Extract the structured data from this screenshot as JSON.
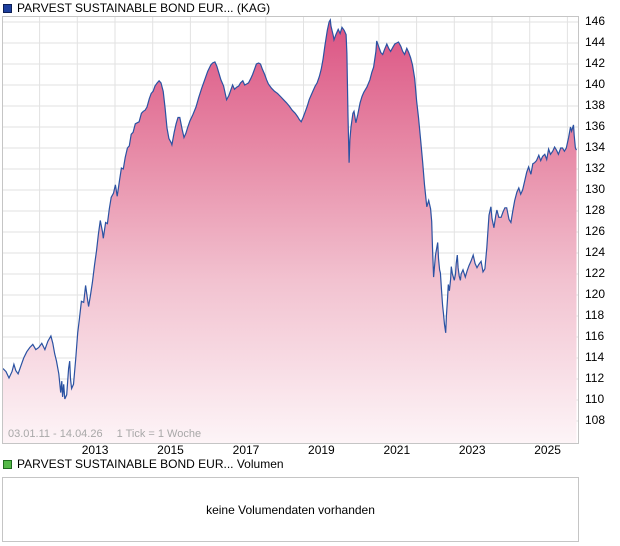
{
  "header": {
    "series_label": "PARVEST SUSTAINABLE BOND EUR... (KAG)",
    "series_swatch_color": "#1d3f9e"
  },
  "chart": {
    "range_text": "03.01.11 - 14.04.26",
    "tick_info_text": "1 Tick = 1 Woche"
  },
  "volume": {
    "series_label": "PARVEST SUSTAINABLE BOND EUR... Volumen",
    "series_swatch_color": "#54b948",
    "empty_text": "keine Volumendaten vorhanden"
  },
  "chart_data": {
    "type": "area",
    "title": "PARVEST SUSTAINABLE BOND EUR... (KAG)",
    "xlabel": "",
    "ylabel": "",
    "x_range": [
      2011.03,
      2026.28
    ],
    "x_ticks": [
      2013,
      2015,
      2017,
      2019,
      2021,
      2023,
      2025
    ],
    "y_ticks": [
      146,
      144,
      142,
      140,
      138,
      136,
      134,
      132,
      130,
      128,
      126,
      124,
      122,
      120,
      118,
      116,
      114,
      112,
      110,
      108
    ],
    "grid": true,
    "legend_position": "none",
    "line_color": "#2b52a2",
    "grid_color": "#e2e2e2",
    "fill_gradient": [
      {
        "offset": 0.0,
        "color": "#db5282"
      },
      {
        "offset": 0.32,
        "color": "#e78ba7"
      },
      {
        "offset": 0.62,
        "color": "#f2c2d0"
      },
      {
        "offset": 1.0,
        "color": "#fdf4f7"
      }
    ],
    "points": [
      [
        2011.03,
        113.0
      ],
      [
        2011.11,
        112.7
      ],
      [
        2011.19,
        112.1
      ],
      [
        2011.27,
        112.7
      ],
      [
        2011.32,
        113.4
      ],
      [
        2011.37,
        112.8
      ],
      [
        2011.43,
        112.5
      ],
      [
        2011.5,
        113.2
      ],
      [
        2011.58,
        114.0
      ],
      [
        2011.66,
        114.6
      ],
      [
        2011.74,
        115.0
      ],
      [
        2011.82,
        115.3
      ],
      [
        2011.9,
        114.8
      ],
      [
        2011.98,
        115.0
      ],
      [
        2012.06,
        115.4
      ],
      [
        2012.14,
        114.8
      ],
      [
        2012.22,
        115.6
      ],
      [
        2012.3,
        116.1
      ],
      [
        2012.35,
        115.4
      ],
      [
        2012.4,
        114.4
      ],
      [
        2012.45,
        113.7
      ],
      [
        2012.51,
        112.5
      ],
      [
        2012.56,
        110.7
      ],
      [
        2012.59,
        111.8
      ],
      [
        2012.61,
        110.3
      ],
      [
        2012.64,
        111.5
      ],
      [
        2012.67,
        110.1
      ],
      [
        2012.72,
        110.5
      ],
      [
        2012.77,
        113.0
      ],
      [
        2012.8,
        113.7
      ],
      [
        2012.82,
        112.0
      ],
      [
        2012.85,
        111.1
      ],
      [
        2012.9,
        111.5
      ],
      [
        2012.96,
        114.0
      ],
      [
        2013.01,
        116.4
      ],
      [
        2013.06,
        117.8
      ],
      [
        2013.11,
        119.4
      ],
      [
        2013.17,
        119.3
      ],
      [
        2013.22,
        120.9
      ],
      [
        2013.27,
        119.6
      ],
      [
        2013.3,
        118.9
      ],
      [
        2013.35,
        120.0
      ],
      [
        2013.4,
        121.2
      ],
      [
        2013.46,
        122.9
      ],
      [
        2013.51,
        124.2
      ],
      [
        2013.56,
        125.8
      ],
      [
        2013.61,
        127.1
      ],
      [
        2013.67,
        126.0
      ],
      [
        2013.69,
        125.4
      ],
      [
        2013.75,
        126.9
      ],
      [
        2013.8,
        126.8
      ],
      [
        2013.85,
        128.2
      ],
      [
        2013.9,
        129.3
      ],
      [
        2013.96,
        129.7
      ],
      [
        2014.01,
        130.5
      ],
      [
        2014.06,
        129.4
      ],
      [
        2014.12,
        130.9
      ],
      [
        2014.17,
        132.1
      ],
      [
        2014.22,
        132.0
      ],
      [
        2014.27,
        133.1
      ],
      [
        2014.33,
        134.0
      ],
      [
        2014.38,
        134.2
      ],
      [
        2014.43,
        135.3
      ],
      [
        2014.48,
        135.5
      ],
      [
        2014.54,
        136.3
      ],
      [
        2014.59,
        136.4
      ],
      [
        2014.64,
        136.5
      ],
      [
        2014.7,
        137.3
      ],
      [
        2014.75,
        137.5
      ],
      [
        2014.8,
        137.6
      ],
      [
        2014.85,
        137.9
      ],
      [
        2014.91,
        138.7
      ],
      [
        2014.96,
        139.2
      ],
      [
        2015.01,
        139.4
      ],
      [
        2015.06,
        139.9
      ],
      [
        2015.12,
        140.2
      ],
      [
        2015.17,
        140.4
      ],
      [
        2015.22,
        140.2
      ],
      [
        2015.28,
        139.4
      ],
      [
        2015.33,
        137.8
      ],
      [
        2015.38,
        135.9
      ],
      [
        2015.43,
        134.9
      ],
      [
        2015.49,
        134.5
      ],
      [
        2015.51,
        134.3
      ],
      [
        2015.57,
        135.5
      ],
      [
        2015.62,
        136.3
      ],
      [
        2015.67,
        136.9
      ],
      [
        2015.72,
        136.9
      ],
      [
        2015.78,
        135.8
      ],
      [
        2015.83,
        135.0
      ],
      [
        2015.88,
        135.4
      ],
      [
        2015.93,
        136.0
      ],
      [
        2015.99,
        136.6
      ],
      [
        2016.07,
        137.2
      ],
      [
        2016.15,
        137.9
      ],
      [
        2016.22,
        138.8
      ],
      [
        2016.3,
        139.7
      ],
      [
        2016.38,
        140.5
      ],
      [
        2016.46,
        141.3
      ],
      [
        2016.54,
        141.9
      ],
      [
        2016.59,
        142.1
      ],
      [
        2016.65,
        142.2
      ],
      [
        2016.7,
        141.8
      ],
      [
        2016.75,
        141.2
      ],
      [
        2016.81,
        140.5
      ],
      [
        2016.88,
        139.9
      ],
      [
        2016.96,
        138.6
      ],
      [
        2017.02,
        139.0
      ],
      [
        2017.07,
        139.5
      ],
      [
        2017.12,
        140.0
      ],
      [
        2017.17,
        139.6
      ],
      [
        2017.23,
        139.8
      ],
      [
        2017.28,
        139.9
      ],
      [
        2017.33,
        140.2
      ],
      [
        2017.39,
        140.4
      ],
      [
        2017.44,
        140.0
      ],
      [
        2017.49,
        140.1
      ],
      [
        2017.54,
        140.2
      ],
      [
        2017.6,
        140.6
      ],
      [
        2017.65,
        141.0
      ],
      [
        2017.7,
        141.5
      ],
      [
        2017.75,
        142.0
      ],
      [
        2017.81,
        142.1
      ],
      [
        2017.86,
        142.0
      ],
      [
        2017.91,
        141.5
      ],
      [
        2017.97,
        141.0
      ],
      [
        2018.02,
        140.5
      ],
      [
        2018.07,
        140.1
      ],
      [
        2018.15,
        139.7
      ],
      [
        2018.23,
        139.4
      ],
      [
        2018.31,
        139.2
      ],
      [
        2018.39,
        138.9
      ],
      [
        2018.47,
        138.6
      ],
      [
        2018.55,
        138.3
      ],
      [
        2018.62,
        138.0
      ],
      [
        2018.7,
        137.6
      ],
      [
        2018.78,
        137.3
      ],
      [
        2018.84,
        137.0
      ],
      [
        2018.89,
        136.7
      ],
      [
        2018.94,
        136.5
      ],
      [
        2018.99,
        136.9
      ],
      [
        2019.05,
        137.5
      ],
      [
        2019.1,
        138.0
      ],
      [
        2019.15,
        138.6
      ],
      [
        2019.2,
        139.0
      ],
      [
        2019.26,
        139.5
      ],
      [
        2019.31,
        139.9
      ],
      [
        2019.36,
        140.2
      ],
      [
        2019.42,
        140.8
      ],
      [
        2019.47,
        141.5
      ],
      [
        2019.52,
        142.5
      ],
      [
        2019.57,
        143.8
      ],
      [
        2019.63,
        145.2
      ],
      [
        2019.68,
        146.0
      ],
      [
        2019.71,
        146.2
      ],
      [
        2019.73,
        145.6
      ],
      [
        2019.79,
        144.7
      ],
      [
        2019.81,
        144.3
      ],
      [
        2019.86,
        144.8
      ],
      [
        2019.92,
        145.3
      ],
      [
        2019.97,
        144.9
      ],
      [
        2020.02,
        145.5
      ],
      [
        2020.08,
        145.2
      ],
      [
        2020.13,
        144.8
      ],
      [
        2020.15,
        143.0
      ],
      [
        2020.18,
        137.0
      ],
      [
        2020.21,
        132.6
      ],
      [
        2020.23,
        134.8
      ],
      [
        2020.26,
        136.0
      ],
      [
        2020.31,
        137.3
      ],
      [
        2020.34,
        137.5
      ],
      [
        2020.39,
        136.4
      ],
      [
        2020.44,
        137.2
      ],
      [
        2020.5,
        138.3
      ],
      [
        2020.55,
        138.9
      ],
      [
        2020.6,
        139.3
      ],
      [
        2020.68,
        139.8
      ],
      [
        2020.76,
        140.5
      ],
      [
        2020.81,
        141.2
      ],
      [
        2020.86,
        141.7
      ],
      [
        2020.92,
        143.2
      ],
      [
        2020.94,
        144.2
      ],
      [
        2021.0,
        143.6
      ],
      [
        2021.05,
        143.1
      ],
      [
        2021.1,
        142.9
      ],
      [
        2021.15,
        143.4
      ],
      [
        2021.21,
        143.9
      ],
      [
        2021.26,
        143.5
      ],
      [
        2021.31,
        143.2
      ],
      [
        2021.37,
        143.6
      ],
      [
        2021.42,
        143.9
      ],
      [
        2021.47,
        144.0
      ],
      [
        2021.52,
        144.1
      ],
      [
        2021.58,
        143.7
      ],
      [
        2021.63,
        143.2
      ],
      [
        2021.68,
        142.9
      ],
      [
        2021.74,
        143.5
      ],
      [
        2021.79,
        143.1
      ],
      [
        2021.84,
        142.6
      ],
      [
        2021.89,
        141.9
      ],
      [
        2021.95,
        140.6
      ],
      [
        2022.0,
        138.5
      ],
      [
        2022.05,
        136.9
      ],
      [
        2022.11,
        134.6
      ],
      [
        2022.16,
        132.6
      ],
      [
        2022.21,
        130.5
      ],
      [
        2022.27,
        128.4
      ],
      [
        2022.32,
        129.0
      ],
      [
        2022.37,
        128.2
      ],
      [
        2022.4,
        127.0
      ],
      [
        2022.42,
        124.5
      ],
      [
        2022.45,
        121.7
      ],
      [
        2022.5,
        123.8
      ],
      [
        2022.56,
        125.0
      ],
      [
        2022.58,
        123.5
      ],
      [
        2022.61,
        122.4
      ],
      [
        2022.63,
        122.1
      ],
      [
        2022.66,
        120.5
      ],
      [
        2022.69,
        119.0
      ],
      [
        2022.71,
        118.3
      ],
      [
        2022.74,
        117.2
      ],
      [
        2022.77,
        116.4
      ],
      [
        2022.79,
        118.0
      ],
      [
        2022.82,
        119.6
      ],
      [
        2022.84,
        121.0
      ],
      [
        2022.87,
        120.4
      ],
      [
        2022.9,
        121.5
      ],
      [
        2022.92,
        122.7
      ],
      [
        2022.95,
        122.0
      ],
      [
        2023.0,
        121.4
      ],
      [
        2023.03,
        122.0
      ],
      [
        2023.05,
        123.0
      ],
      [
        2023.08,
        123.8
      ],
      [
        2023.1,
        122.6
      ],
      [
        2023.13,
        121.8
      ],
      [
        2023.16,
        121.4
      ],
      [
        2023.18,
        122.0
      ],
      [
        2023.23,
        122.4
      ],
      [
        2023.29,
        121.7
      ],
      [
        2023.34,
        122.3
      ],
      [
        2023.39,
        122.8
      ],
      [
        2023.44,
        123.2
      ],
      [
        2023.5,
        123.8
      ],
      [
        2023.55,
        123.0
      ],
      [
        2023.6,
        122.6
      ],
      [
        2023.65,
        122.9
      ],
      [
        2023.71,
        123.2
      ],
      [
        2023.76,
        122.2
      ],
      [
        2023.81,
        122.5
      ],
      [
        2023.86,
        124.5
      ],
      [
        2023.92,
        127.6
      ],
      [
        2023.97,
        128.4
      ],
      [
        2024.0,
        127.3
      ],
      [
        2024.05,
        126.4
      ],
      [
        2024.1,
        127.6
      ],
      [
        2024.13,
        128.1
      ],
      [
        2024.18,
        127.4
      ],
      [
        2024.24,
        127.4
      ],
      [
        2024.29,
        127.9
      ],
      [
        2024.34,
        128.3
      ],
      [
        2024.39,
        128.3
      ],
      [
        2024.45,
        127.2
      ],
      [
        2024.5,
        126.9
      ],
      [
        2024.55,
        128.0
      ],
      [
        2024.6,
        129.0
      ],
      [
        2024.66,
        129.8
      ],
      [
        2024.71,
        130.2
      ],
      [
        2024.76,
        129.6
      ],
      [
        2024.81,
        130.0
      ],
      [
        2024.87,
        130.9
      ],
      [
        2024.92,
        131.7
      ],
      [
        2024.97,
        132.2
      ],
      [
        2025.03,
        131.5
      ],
      [
        2025.08,
        132.5
      ],
      [
        2025.13,
        132.6
      ],
      [
        2025.18,
        132.8
      ],
      [
        2025.24,
        133.3
      ],
      [
        2025.29,
        132.8
      ],
      [
        2025.34,
        133.2
      ],
      [
        2025.4,
        133.4
      ],
      [
        2025.45,
        132.9
      ],
      [
        2025.5,
        133.9
      ],
      [
        2025.55,
        133.4
      ],
      [
        2025.61,
        133.7
      ],
      [
        2025.66,
        134.1
      ],
      [
        2025.71,
        133.8
      ],
      [
        2025.76,
        133.4
      ],
      [
        2025.82,
        134.0
      ],
      [
        2025.87,
        134.0
      ],
      [
        2025.92,
        133.7
      ],
      [
        2025.97,
        134.0
      ],
      [
        2026.03,
        135.0
      ],
      [
        2026.08,
        136.0
      ],
      [
        2026.11,
        135.6
      ],
      [
        2026.16,
        136.2
      ],
      [
        2026.18,
        135.2
      ],
      [
        2026.21,
        134.0
      ],
      [
        2026.24,
        133.8
      ]
    ]
  }
}
